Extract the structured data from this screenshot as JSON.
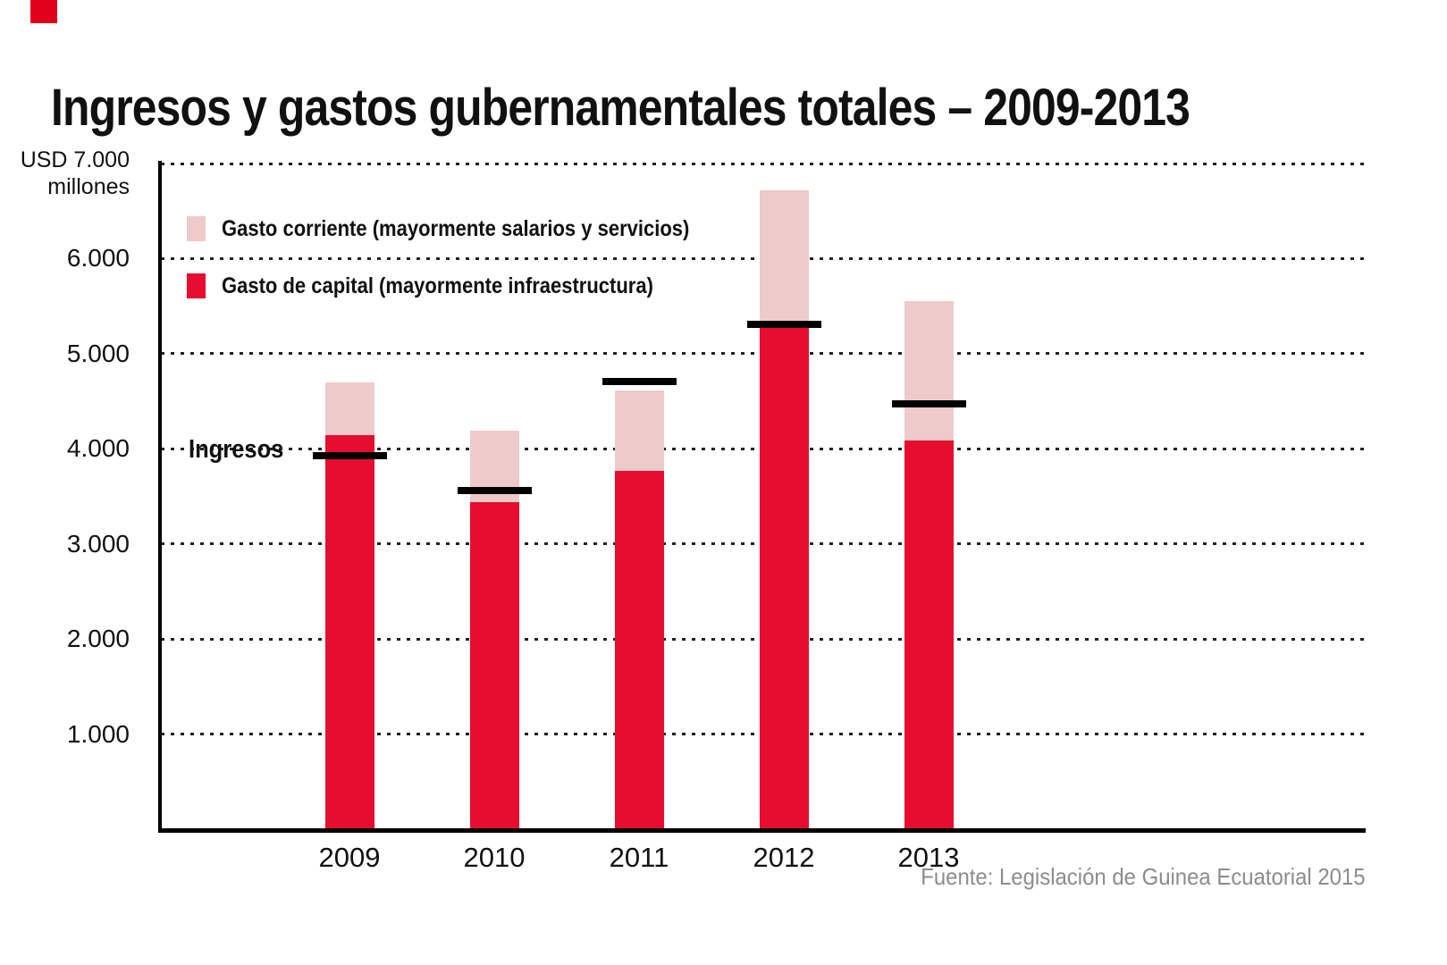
{
  "title": "Ingresos y gastos gubernamentales totales – 2009-2013",
  "y_axis": {
    "unit_line1": "USD 7.000",
    "unit_line2": "millones",
    "ticks": [
      "6.000",
      "5.000",
      "4.000",
      "3.000",
      "2.000",
      "1.000"
    ]
  },
  "legend": [
    {
      "label": "Gasto corriente (mayormente salarios y servicios)",
      "color": "#eecaca"
    },
    {
      "label": "Gasto de capital (mayormente infraestructura)",
      "color": "#e60d2e"
    }
  ],
  "ingresos_label": "Ingresos",
  "source": "Fuente: Legislación de Guinea Ecuatorial 2015",
  "colors": {
    "bar_red": "#e60d2e",
    "bar_pink": "#eecaca",
    "income_line": "#000000",
    "grid": "#222222",
    "text": "#111111",
    "source_text": "#8c8c8c",
    "brand_red": "#e2001a"
  },
  "chart_data": {
    "type": "bar",
    "stacked": true,
    "categories": [
      "2009",
      "2010",
      "2011",
      "2012",
      "2013"
    ],
    "series": [
      {
        "name": "Gasto de capital (mayormente infraestructura)",
        "color": "#e60d2e",
        "values": [
          4140,
          3440,
          3770,
          5270,
          4090
        ]
      },
      {
        "name": "Gasto corriente (mayormente salarios y servicios)",
        "color": "#eecaca",
        "values": [
          560,
          750,
          840,
          1450,
          1460
        ]
      }
    ],
    "totals": [
      4700,
      4190,
      4610,
      6720,
      5550
    ],
    "ingresos": [
      3930,
      3560,
      4710,
      5310,
      4470
    ],
    "ingresos_marker": "black horizontal line per year",
    "title": "Ingresos y gastos gubernamentales totales – 2009-2013",
    "xlabel": "",
    "ylabel": "USD millones",
    "ylim": [
      0,
      7000
    ],
    "gridline_values": [
      1000,
      2000,
      3000,
      4000,
      5000,
      6000,
      7000
    ],
    "grid": "dotted horizontal",
    "legend_position": "top-left inside plot"
  }
}
